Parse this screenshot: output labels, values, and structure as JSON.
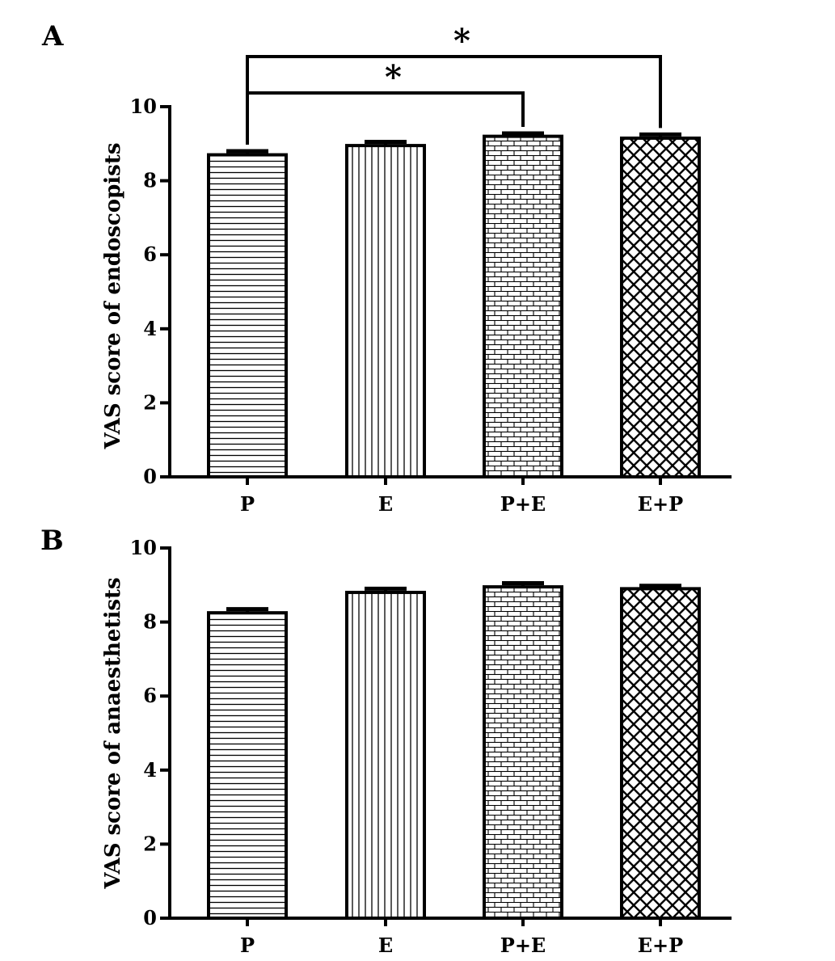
{
  "figure": {
    "colors": {
      "ink": "#000000",
      "background": "#ffffff"
    },
    "panels": [
      {
        "letter": "A"
      },
      {
        "letter": "B"
      }
    ]
  },
  "chart_data": [
    {
      "type": "bar",
      "title": "",
      "xlabel": "",
      "ylabel": "VAS score of endoscopists",
      "categories": [
        "P",
        "E",
        "P+E",
        "E+P"
      ],
      "values": [
        8.7,
        8.95,
        9.2,
        9.15
      ],
      "errors": [
        0.1,
        0.1,
        0.08,
        0.1
      ],
      "patterns": [
        "horizontal-lines",
        "vertical-lines",
        "brick",
        "crosshatch"
      ],
      "ylim": [
        0,
        10
      ],
      "yticks": [
        "0",
        "2",
        "4",
        "6",
        "8",
        "10"
      ],
      "grid": false,
      "annotations": [
        {
          "label": "*",
          "from": "P",
          "to": "P+E"
        },
        {
          "label": "*",
          "from": "P",
          "to": "E+P"
        }
      ]
    },
    {
      "type": "bar",
      "title": "",
      "xlabel": "",
      "ylabel": "VAS score of anaesthetists",
      "categories": [
        "P",
        "E",
        "P+E",
        "E+P"
      ],
      "values": [
        8.25,
        8.8,
        8.95,
        8.9
      ],
      "errors": [
        0.1,
        0.1,
        0.1,
        0.08
      ],
      "patterns": [
        "horizontal-lines",
        "vertical-lines",
        "brick",
        "crosshatch"
      ],
      "ylim": [
        0,
        10
      ],
      "yticks": [
        "0",
        "2",
        "4",
        "6",
        "8",
        "10"
      ],
      "grid": false,
      "annotations": []
    }
  ]
}
